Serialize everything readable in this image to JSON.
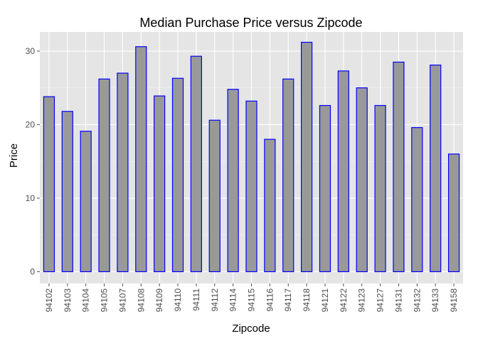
{
  "chart_data": {
    "type": "bar",
    "title": "Median Purchase Price versus Zipcode",
    "xlabel": "Zipcode",
    "ylabel": "Price",
    "ylim": [
      -1.6,
      32.6
    ],
    "yticks": [
      0,
      10,
      20,
      30
    ],
    "grid": true,
    "categories": [
      "94102",
      "94103",
      "94104",
      "94105",
      "94107",
      "94108",
      "94109",
      "94110",
      "94111",
      "94112",
      "94114",
      "94115",
      "94116",
      "94117",
      "94118",
      "94121",
      "94122",
      "94123",
      "94127",
      "94131",
      "94132",
      "94133",
      "94158"
    ],
    "values": [
      23.8,
      21.8,
      19.1,
      26.2,
      27.0,
      30.6,
      23.9,
      26.3,
      29.3,
      20.6,
      24.8,
      23.2,
      18.0,
      26.2,
      31.2,
      22.6,
      27.3,
      25.0,
      22.6,
      28.5,
      19.6,
      28.1,
      16.0
    ],
    "colors": {
      "panel": "#e5e5e5",
      "grid_major": "#ffffff",
      "grid_minor": "#f2f2f2",
      "bar_fill": "#999999",
      "bar_stroke": "#0000ff",
      "tick": "#4d4d4d"
    }
  }
}
